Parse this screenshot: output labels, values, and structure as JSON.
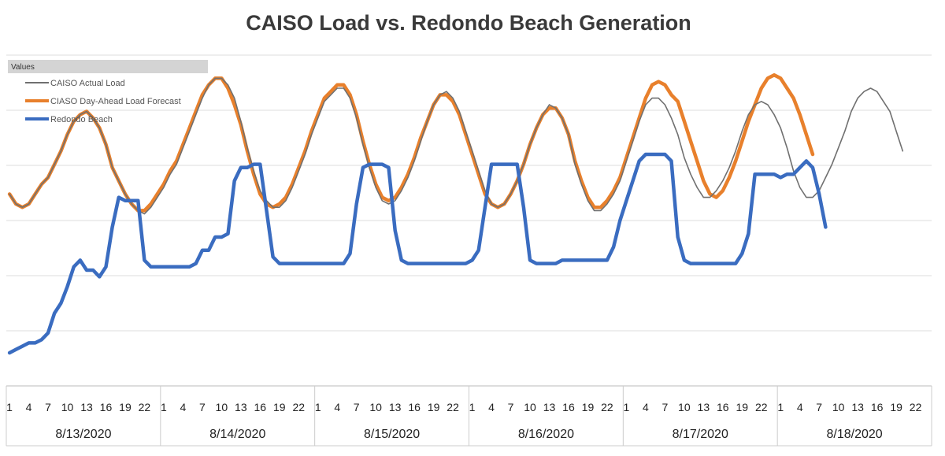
{
  "chart_data": {
    "type": "line",
    "title": "CAISO Load vs. Redondo Beach Generation",
    "xlabel": "",
    "ylabel": "",
    "legend_title": "Values",
    "legend_position": "top-left",
    "grid": true,
    "y_axis_labels_visible": false,
    "days": [
      "8/13/2020",
      "8/14/2020",
      "8/15/2020",
      "8/16/2020",
      "8/17/2020",
      "8/18/2020"
    ],
    "hour_ticks": [
      "1",
      "4",
      "7",
      "10",
      "13",
      "16",
      "19",
      "22"
    ],
    "ylim": [
      0,
      100
    ],
    "series": [
      {
        "name": "CAISO Actual Load",
        "color": "#707070",
        "values": [
          58,
          55,
          54,
          55,
          58,
          61,
          63,
          67,
          71,
          76,
          80,
          82,
          83,
          81,
          78,
          73,
          66,
          62,
          58,
          55,
          53,
          52,
          54,
          57,
          60,
          64,
          67,
          72,
          77,
          82,
          87,
          91,
          93,
          93,
          91,
          87,
          80,
          72,
          65,
          59,
          56,
          54,
          54,
          56,
          60,
          65,
          70,
          76,
          81,
          86,
          88,
          90,
          90,
          87,
          81,
          73,
          66,
          60,
          56,
          55,
          56,
          59,
          63,
          68,
          74,
          80,
          85,
          88,
          89,
          87,
          83,
          77,
          71,
          65,
          59,
          55,
          54,
          55,
          58,
          62,
          67,
          73,
          78,
          82,
          85,
          84,
          81,
          76,
          67,
          61,
          56,
          53,
          53,
          55,
          58,
          62,
          68,
          74,
          80,
          85,
          87,
          87,
          85,
          81,
          76,
          69,
          64,
          60,
          57,
          57,
          59,
          62,
          66,
          71,
          77,
          82,
          85,
          86,
          85,
          82,
          78,
          72,
          65,
          60,
          57,
          57,
          59,
          63,
          67,
          72,
          77,
          83,
          87,
          89,
          90,
          89,
          86,
          83,
          77,
          71
        ]
      },
      {
        "name": "CIASO Day-Ahead Load Forecast",
        "color": "#e8802c",
        "values": [
          58,
          55,
          54,
          55,
          58,
          61,
          63,
          67,
          71,
          76,
          80,
          82,
          83,
          81,
          78,
          73,
          66,
          62,
          58,
          55,
          53,
          53,
          55,
          58,
          61,
          65,
          68,
          73,
          78,
          83,
          88,
          91,
          93,
          93,
          90,
          85,
          79,
          71,
          64,
          58,
          55,
          54,
          55,
          57,
          61,
          66,
          71,
          77,
          82,
          87,
          89,
          91,
          91,
          88,
          82,
          74,
          67,
          61,
          57,
          56,
          57,
          60,
          64,
          69,
          75,
          80,
          85,
          88,
          88,
          86,
          82,
          76,
          70,
          64,
          58,
          55,
          54,
          55,
          58,
          62,
          67,
          73,
          78,
          82,
          84,
          84,
          81,
          76,
          68,
          62,
          57,
          54,
          54,
          56,
          59,
          63,
          69,
          75,
          81,
          87,
          91,
          92,
          91,
          88,
          86,
          80,
          74,
          68,
          62,
          58,
          57,
          59,
          63,
          68,
          74,
          80,
          85,
          90,
          93,
          94,
          93,
          90,
          87,
          82,
          76,
          70
        ]
      },
      {
        "name": "Redondo Beach",
        "color": "#3a6cc0",
        "values": [
          10,
          11,
          12,
          13,
          13,
          14,
          16,
          22,
          25,
          30,
          36,
          38,
          35,
          35,
          33,
          36,
          48,
          57,
          56,
          56,
          56,
          38,
          36,
          36,
          36,
          36,
          36,
          36,
          36,
          37,
          41,
          41,
          45,
          45,
          46,
          62,
          66,
          66,
          67,
          67,
          53,
          39,
          37,
          37,
          37,
          37,
          37,
          37,
          37,
          37,
          37,
          37,
          37,
          40,
          55,
          66,
          67,
          67,
          67,
          66,
          47,
          38,
          37,
          37,
          37,
          37,
          37,
          37,
          37,
          37,
          37,
          37,
          38,
          41,
          54,
          67,
          67,
          67,
          67,
          67,
          54,
          38,
          37,
          37,
          37,
          37,
          38,
          38,
          38,
          38,
          38,
          38,
          38,
          38,
          42,
          50,
          56,
          62,
          68,
          70,
          70,
          70,
          70,
          68,
          45,
          38,
          37,
          37,
          37,
          37,
          37,
          37,
          37,
          37,
          40,
          46,
          64,
          64,
          64,
          64,
          63,
          64,
          64,
          66,
          68,
          66,
          58,
          48
        ]
      }
    ]
  }
}
